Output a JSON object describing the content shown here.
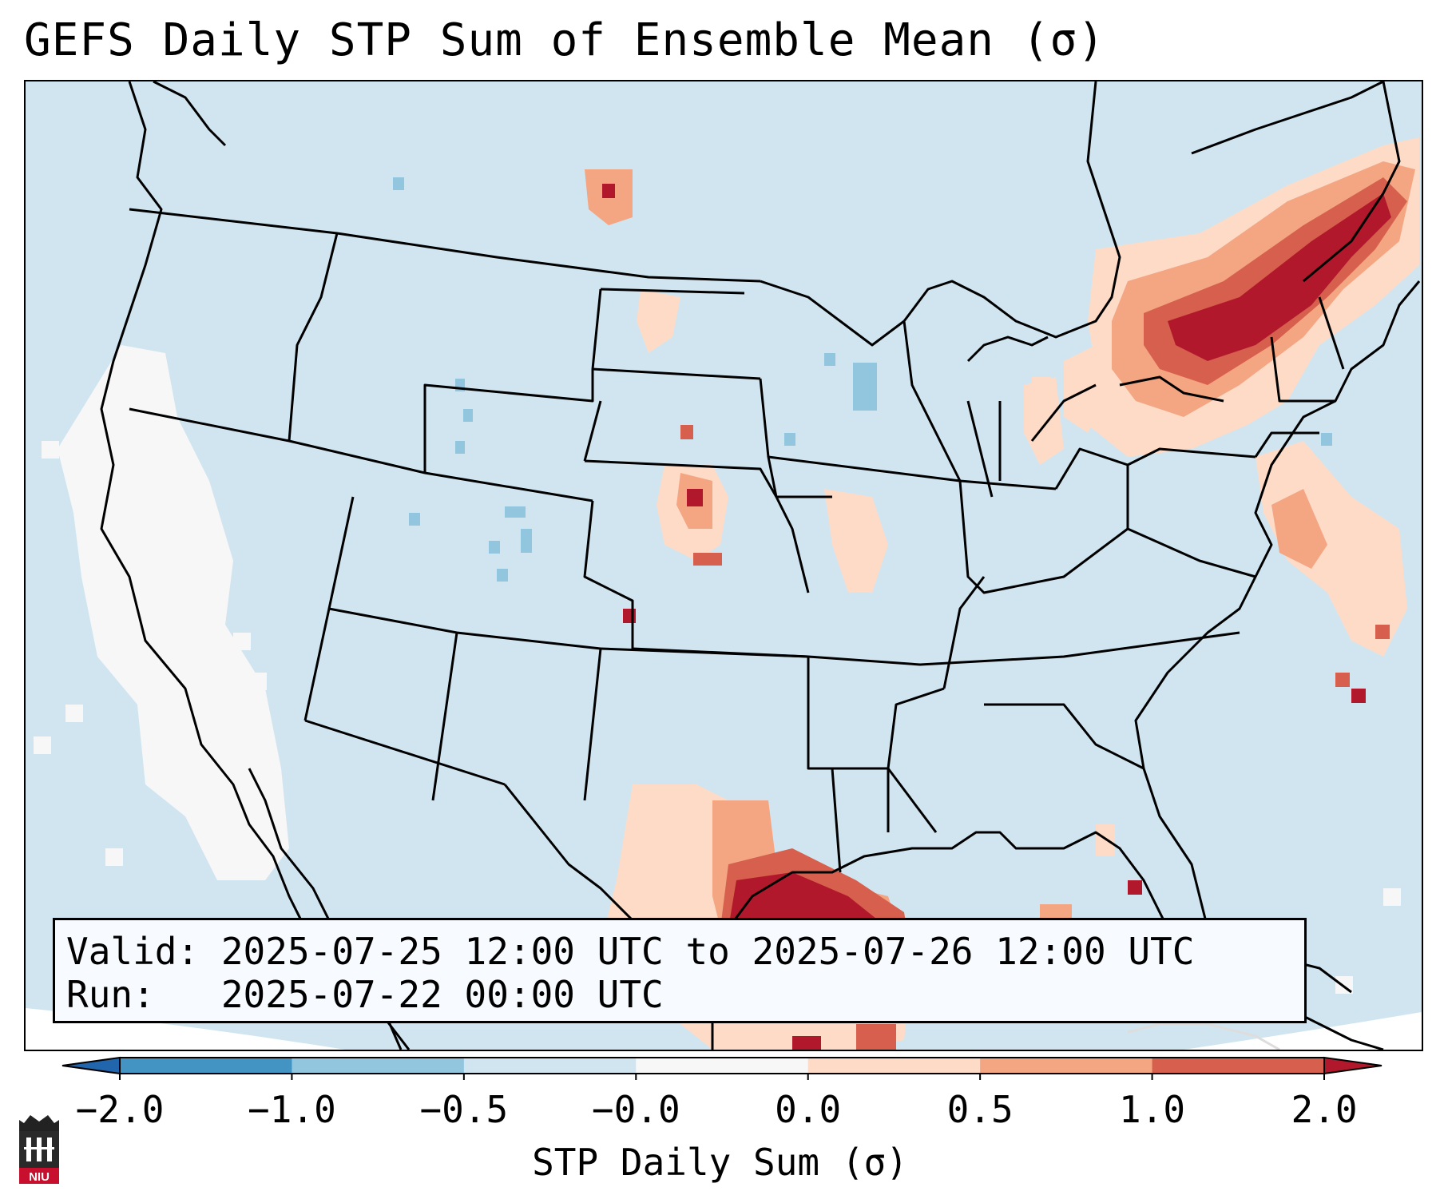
{
  "title": "GEFS Daily STP Sum of Ensemble Mean (σ)",
  "info": {
    "valid_line": "Valid: 2025-07-25 12:00 UTC to 2025-07-26 12:00 UTC",
    "run_line": "Run:   2025-07-22 00:00 UTC"
  },
  "colorbar": {
    "label": "STP Daily Sum (σ)",
    "ticks": [
      "−2.0",
      "−1.0",
      "−0.5",
      "−0.0",
      "0.0",
      "0.5",
      "1.0",
      "2.0"
    ],
    "colors": [
      "#2166ac",
      "#4393c3",
      "#92c5de",
      "#d1e5f0",
      "#f7f7f7",
      "#fddbc7",
      "#f4a582",
      "#d6604d",
      "#b2182b"
    ]
  },
  "map": {
    "ocean_color": "#d1e5f0",
    "land_color": "#d1e5f0",
    "border_color": "#000000",
    "anomaly_regions": [
      {
        "name": "northeast-us",
        "level": "2.0+"
      },
      {
        "name": "texas-gulf-coast",
        "level": "2.0+"
      },
      {
        "name": "great-plains",
        "level": "1.0"
      },
      {
        "name": "mid-atlantic-coast",
        "level": "0.5"
      },
      {
        "name": "rocky-mountains",
        "level": "-0.5"
      }
    ]
  },
  "logo": {
    "text": "NIU",
    "color": "#c8102e"
  }
}
